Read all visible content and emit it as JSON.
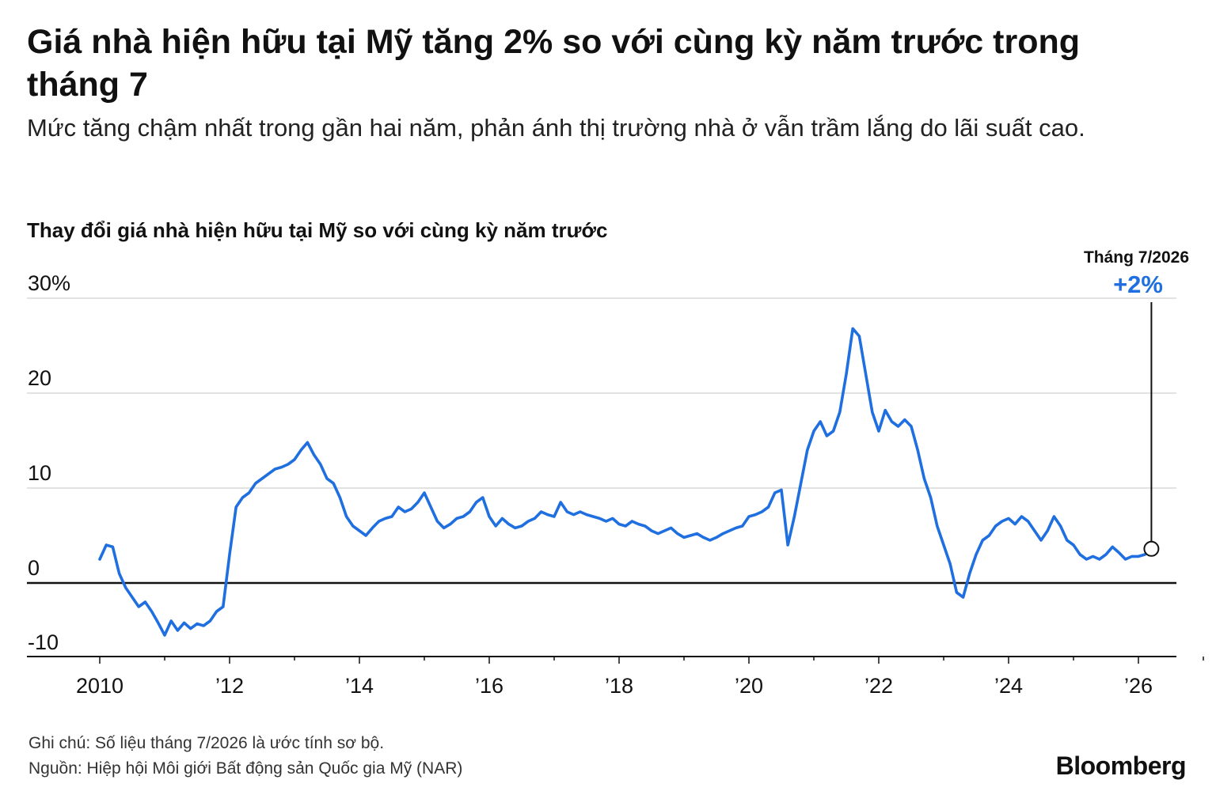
{
  "headline": "Giá nhà hiện hữu tại Mỹ tăng 2% so với cùng kỳ năm trước trong tháng 7",
  "subheadline": "Mức tăng chậm nhất trong gần hai năm, phản ánh thị trường nhà ở vẫn trầm lắng do lãi suất cao.",
  "footer": {
    "note": "Ghi chú: Số liệu tháng 7/2026 là ước tính sơ bộ.",
    "source": "Nguồn: Hiệp hội Môi giới Bất động sản Quốc gia Mỹ (NAR)",
    "brand": "Bloomberg"
  },
  "colors": {
    "series": "#1f6fe0",
    "grid": "#d0d0d0",
    "axis": "#111111"
  },
  "chart_data": {
    "type": "line",
    "title": "Thay đổi giá nhà hiện hữu tại Mỹ so với cùng kỳ năm trước",
    "xlabel": "",
    "ylabel": "",
    "ylim": [
      -10,
      30
    ],
    "y_ticks": [
      {
        "value": 30,
        "label": "30%"
      },
      {
        "value": 20,
        "label": "20"
      },
      {
        "value": 10,
        "label": "10"
      },
      {
        "value": 0,
        "label": "0"
      },
      {
        "value": -10,
        "label": "-10"
      }
    ],
    "x_ticks": [
      {
        "value": 2010,
        "label": "2010"
      },
      {
        "value": 2012,
        "label": "’12"
      },
      {
        "value": 2014,
        "label": "’14"
      },
      {
        "value": 2016,
        "label": "’16"
      },
      {
        "value": 2018,
        "label": "’18"
      },
      {
        "value": 2020,
        "label": "’20"
      },
      {
        "value": 2022,
        "label": "’22"
      },
      {
        "value": 2024,
        "label": "’24"
      },
      {
        "value": 2026,
        "label": "’26"
      }
    ],
    "xlim": [
      2009.2,
      2027.3
    ],
    "grid": true,
    "annotation": {
      "label": "Tháng 7/2026",
      "value_label": "+2%"
    },
    "series": [
      {
        "points": [
          [
            2010.0,
            2.5
          ],
          [
            2010.1,
            4.0
          ],
          [
            2010.2,
            3.8
          ],
          [
            2010.3,
            1.0
          ],
          [
            2010.4,
            -0.5
          ],
          [
            2010.5,
            -1.5
          ],
          [
            2010.6,
            -2.5
          ],
          [
            2010.7,
            -2.0
          ],
          [
            2010.8,
            -3.0
          ],
          [
            2010.9,
            -4.2
          ],
          [
            2011.0,
            -5.5
          ],
          [
            2011.1,
            -4.0
          ],
          [
            2011.2,
            -5.0
          ],
          [
            2011.3,
            -4.2
          ],
          [
            2011.4,
            -4.8
          ],
          [
            2011.5,
            -4.3
          ],
          [
            2011.6,
            -4.5
          ],
          [
            2011.7,
            -4.0
          ],
          [
            2011.8,
            -3.0
          ],
          [
            2011.9,
            -2.5
          ],
          [
            2012.0,
            3.0
          ],
          [
            2012.1,
            8.0
          ],
          [
            2012.2,
            9.0
          ],
          [
            2012.3,
            9.5
          ],
          [
            2012.4,
            10.5
          ],
          [
            2012.5,
            11.0
          ],
          [
            2012.6,
            11.5
          ],
          [
            2012.7,
            12.0
          ],
          [
            2012.8,
            12.2
          ],
          [
            2012.9,
            12.5
          ],
          [
            2013.0,
            13.0
          ],
          [
            2013.1,
            14.0
          ],
          [
            2013.2,
            14.8
          ],
          [
            2013.3,
            13.5
          ],
          [
            2013.4,
            12.5
          ],
          [
            2013.5,
            11.0
          ],
          [
            2013.6,
            10.5
          ],
          [
            2013.7,
            9.0
          ],
          [
            2013.8,
            7.0
          ],
          [
            2013.9,
            6.0
          ],
          [
            2014.0,
            5.5
          ],
          [
            2014.1,
            5.0
          ],
          [
            2014.2,
            5.8
          ],
          [
            2014.3,
            6.5
          ],
          [
            2014.4,
            6.8
          ],
          [
            2014.5,
            7.0
          ],
          [
            2014.6,
            8.0
          ],
          [
            2014.7,
            7.5
          ],
          [
            2014.8,
            7.8
          ],
          [
            2014.9,
            8.5
          ],
          [
            2015.0,
            9.5
          ],
          [
            2015.1,
            8.0
          ],
          [
            2015.2,
            6.5
          ],
          [
            2015.3,
            5.8
          ],
          [
            2015.4,
            6.2
          ],
          [
            2015.5,
            6.8
          ],
          [
            2015.6,
            7.0
          ],
          [
            2015.7,
            7.5
          ],
          [
            2015.8,
            8.5
          ],
          [
            2015.9,
            9.0
          ],
          [
            2016.0,
            7.0
          ],
          [
            2016.1,
            6.0
          ],
          [
            2016.2,
            6.8
          ],
          [
            2016.3,
            6.2
          ],
          [
            2016.4,
            5.8
          ],
          [
            2016.5,
            6.0
          ],
          [
            2016.6,
            6.5
          ],
          [
            2016.7,
            6.8
          ],
          [
            2016.8,
            7.5
          ],
          [
            2016.9,
            7.2
          ],
          [
            2017.0,
            7.0
          ],
          [
            2017.1,
            8.5
          ],
          [
            2017.2,
            7.5
          ],
          [
            2017.3,
            7.2
          ],
          [
            2017.4,
            7.5
          ],
          [
            2017.5,
            7.2
          ],
          [
            2017.6,
            7.0
          ],
          [
            2017.7,
            6.8
          ],
          [
            2017.8,
            6.5
          ],
          [
            2017.9,
            6.8
          ],
          [
            2018.0,
            6.2
          ],
          [
            2018.1,
            6.0
          ],
          [
            2018.2,
            6.5
          ],
          [
            2018.3,
            6.2
          ],
          [
            2018.4,
            6.0
          ],
          [
            2018.5,
            5.5
          ],
          [
            2018.6,
            5.2
          ],
          [
            2018.7,
            5.5
          ],
          [
            2018.8,
            5.8
          ],
          [
            2018.9,
            5.2
          ],
          [
            2019.0,
            4.8
          ],
          [
            2019.1,
            5.0
          ],
          [
            2019.2,
            5.2
          ],
          [
            2019.3,
            4.8
          ],
          [
            2019.4,
            4.5
          ],
          [
            2019.5,
            4.8
          ],
          [
            2019.6,
            5.2
          ],
          [
            2019.7,
            5.5
          ],
          [
            2019.8,
            5.8
          ],
          [
            2019.9,
            6.0
          ],
          [
            2020.0,
            7.0
          ],
          [
            2020.1,
            7.2
          ],
          [
            2020.2,
            7.5
          ],
          [
            2020.3,
            8.0
          ],
          [
            2020.4,
            9.5
          ],
          [
            2020.5,
            9.8
          ],
          [
            2020.6,
            4.0
          ],
          [
            2020.7,
            7.0
          ],
          [
            2020.8,
            10.5
          ],
          [
            2020.9,
            14.0
          ],
          [
            2021.0,
            16.0
          ],
          [
            2021.1,
            17.0
          ],
          [
            2021.2,
            15.5
          ],
          [
            2021.3,
            16.0
          ],
          [
            2021.4,
            18.0
          ],
          [
            2021.5,
            22.0
          ],
          [
            2021.6,
            26.8
          ],
          [
            2021.7,
            26.0
          ],
          [
            2021.8,
            22.0
          ],
          [
            2021.9,
            18.0
          ],
          [
            2022.0,
            16.0
          ],
          [
            2022.1,
            18.2
          ],
          [
            2022.2,
            17.0
          ],
          [
            2022.3,
            16.5
          ],
          [
            2022.4,
            17.2
          ],
          [
            2022.5,
            16.5
          ],
          [
            2022.6,
            14.0
          ],
          [
            2022.7,
            11.0
          ],
          [
            2022.8,
            9.0
          ],
          [
            2022.9,
            6.0
          ],
          [
            2023.0,
            4.0
          ],
          [
            2023.1,
            2.0
          ],
          [
            2023.2,
            -1.0
          ],
          [
            2023.3,
            -1.5
          ],
          [
            2023.4,
            1.0
          ],
          [
            2023.5,
            3.0
          ],
          [
            2023.6,
            4.5
          ],
          [
            2023.7,
            5.0
          ],
          [
            2023.8,
            6.0
          ],
          [
            2023.9,
            6.5
          ],
          [
            2024.0,
            6.8
          ],
          [
            2024.1,
            6.2
          ],
          [
            2024.2,
            7.0
          ],
          [
            2024.3,
            6.5
          ],
          [
            2024.4,
            5.5
          ],
          [
            2024.5,
            4.5
          ],
          [
            2024.6,
            5.5
          ],
          [
            2024.7,
            7.0
          ],
          [
            2024.8,
            6.0
          ],
          [
            2024.9,
            4.5
          ],
          [
            2025.0,
            4.0
          ],
          [
            2025.1,
            3.0
          ],
          [
            2025.2,
            2.5
          ],
          [
            2025.3,
            2.8
          ],
          [
            2025.4,
            2.5
          ],
          [
            2025.5,
            3.0
          ],
          [
            2025.6,
            3.8
          ],
          [
            2025.7,
            3.2
          ],
          [
            2025.8,
            2.5
          ],
          [
            2025.9,
            2.8
          ],
          [
            2026.0,
            2.8
          ],
          [
            2026.1,
            3.0
          ],
          [
            2026.2,
            3.6
          ]
        ]
      }
    ]
  }
}
